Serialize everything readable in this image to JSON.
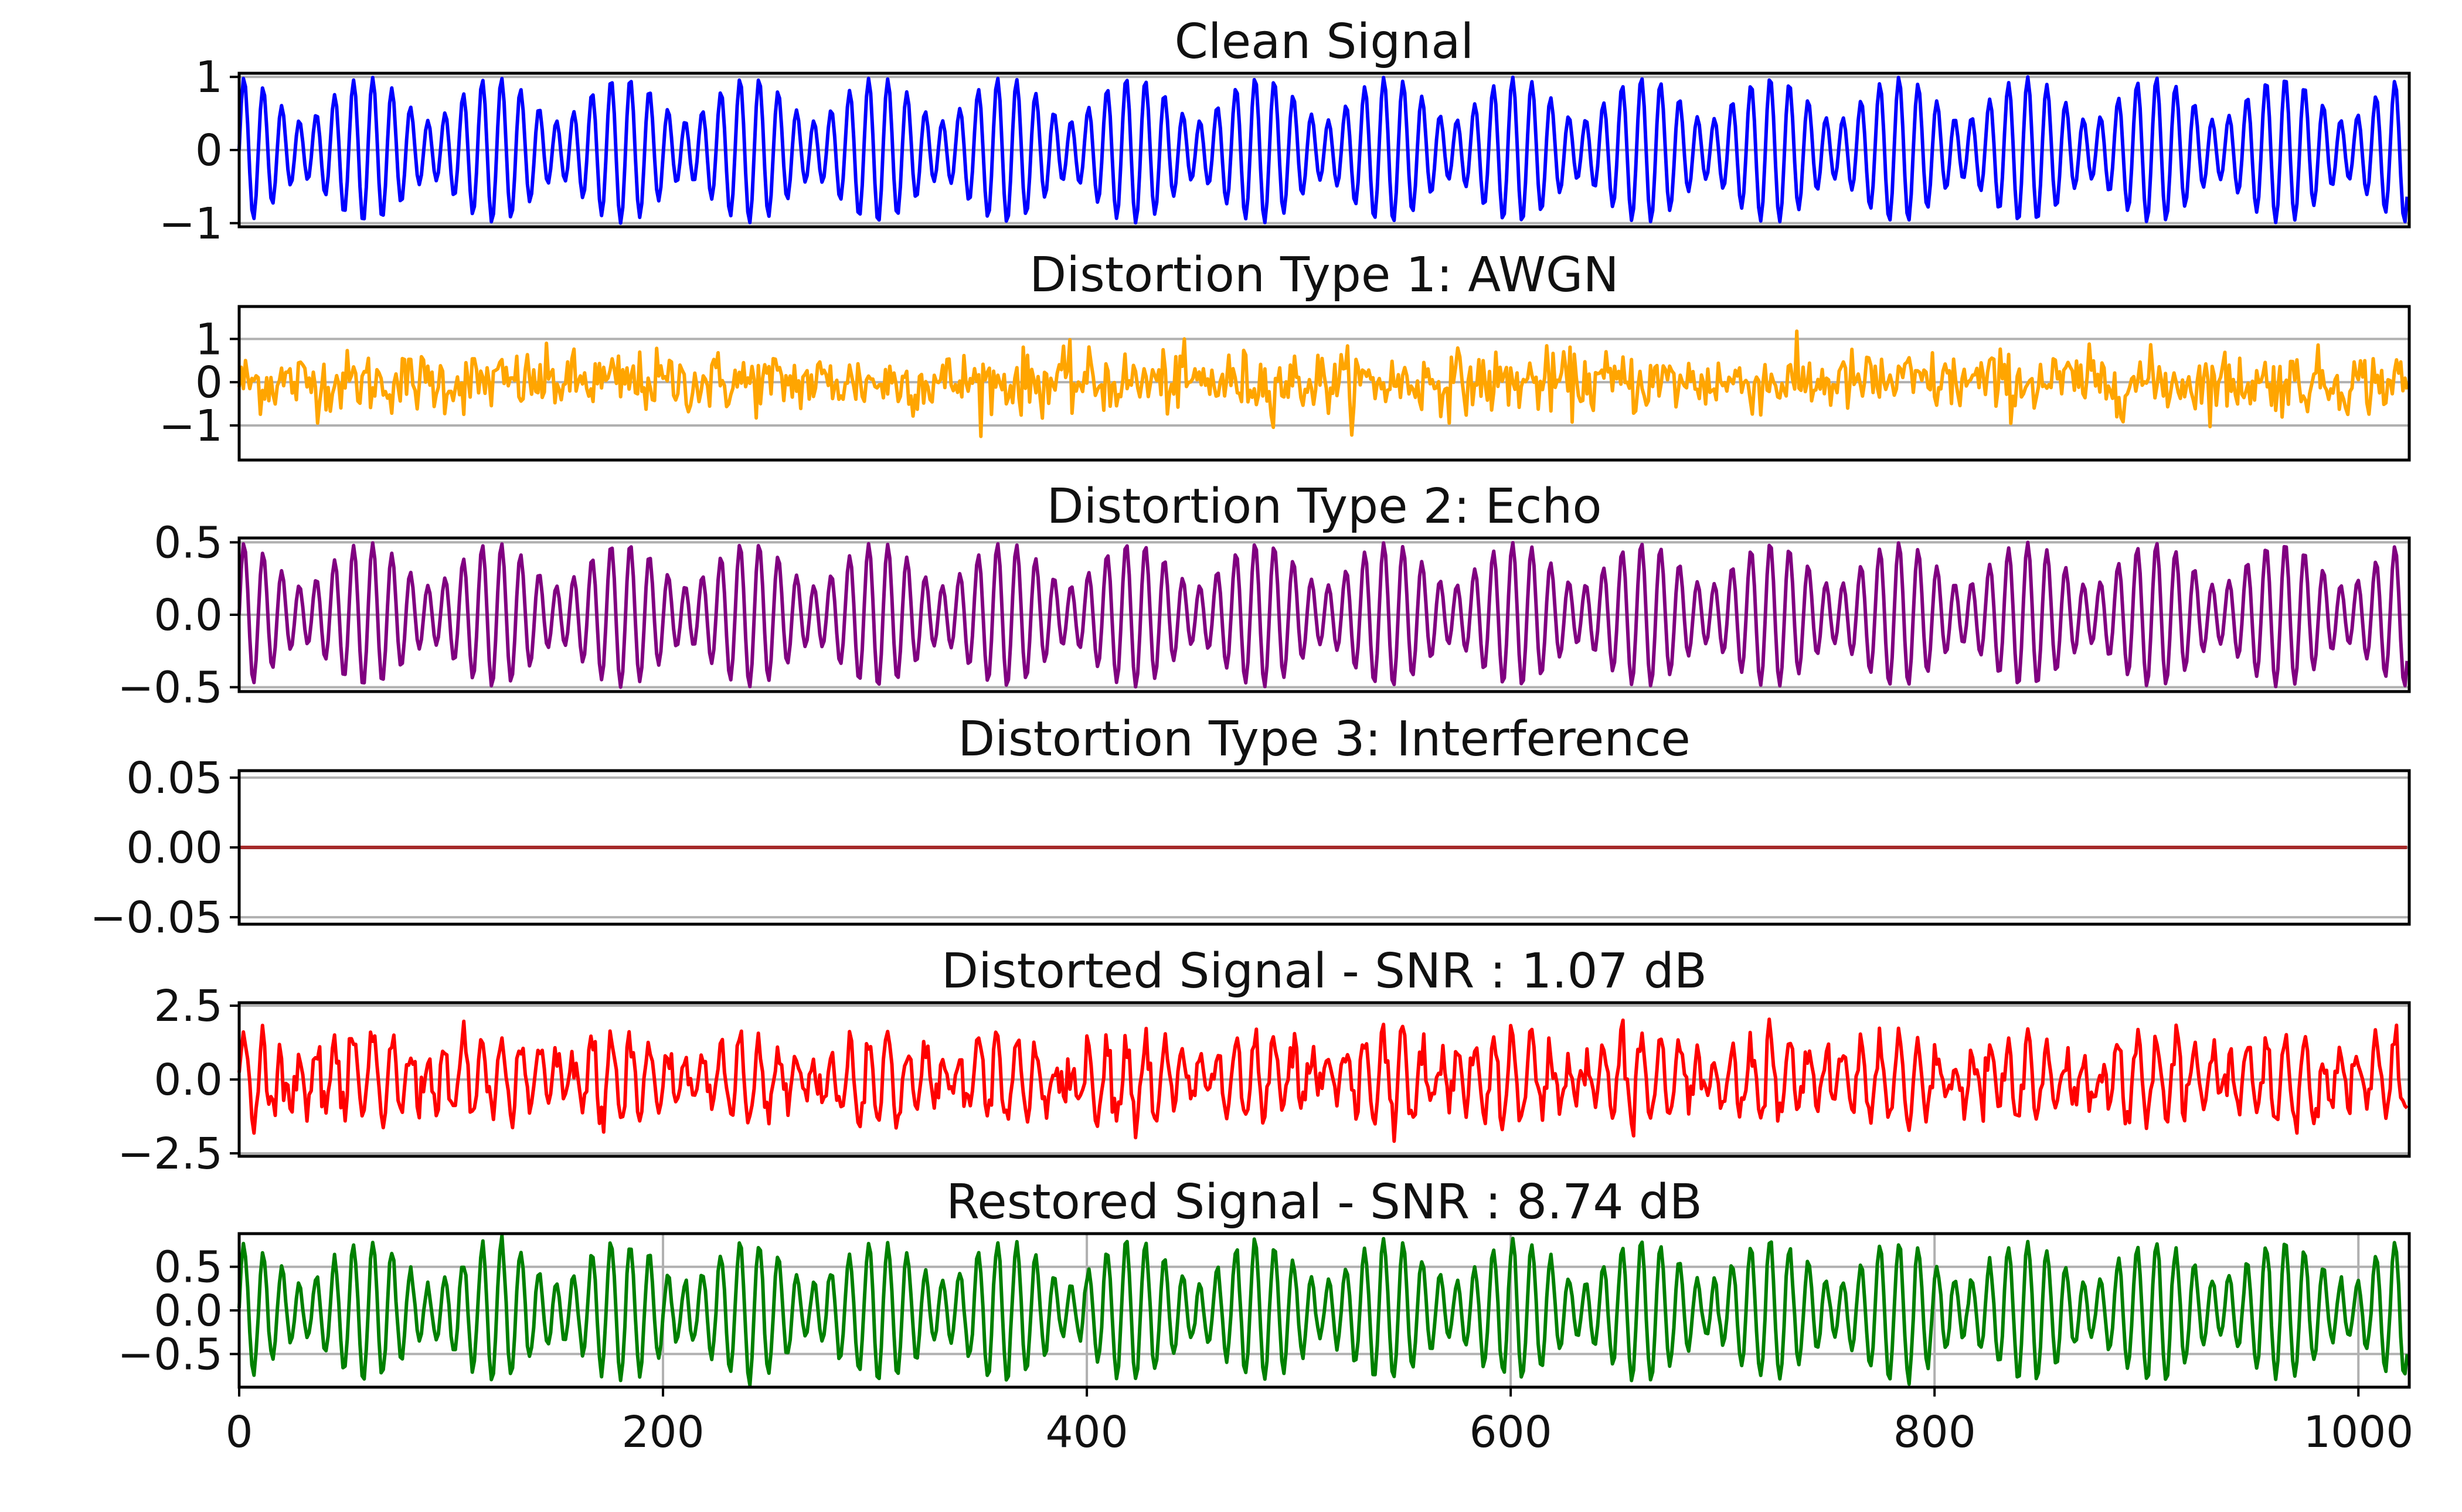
{
  "chart_data": [
    {
      "type": "line",
      "title": "Clean Signal",
      "color": "#0000ff",
      "yticks": [
        {
          "value": 1,
          "label": "1"
        },
        {
          "value": 0,
          "label": "0"
        },
        {
          "value": -1,
          "label": "−1"
        }
      ],
      "ylim": [
        -1.05,
        1.05
      ],
      "xlim": [
        0,
        1024
      ],
      "grid": "horizontal",
      "signal": {
        "components": [
          {
            "amp": 0.7,
            "cycles": 118
          },
          {
            "amp": 0.3,
            "cycles": 101
          }
        ],
        "noise": 0.0,
        "samples": 1024
      }
    },
    {
      "type": "line",
      "title": "Distortion Type 1: AWGN",
      "color": "#ffa500",
      "yticks": [
        {
          "value": 1,
          "label": "1"
        },
        {
          "value": 0,
          "label": "0"
        },
        {
          "value": -1,
          "label": "−1"
        }
      ],
      "ylim": [
        -1.8,
        1.75
      ],
      "xlim": [
        0,
        1024
      ],
      "grid": "horizontal",
      "signal": {
        "components": [],
        "noise": 0.36,
        "samples": 1024
      }
    },
    {
      "type": "line",
      "title": "Distortion Type 2: Echo",
      "color": "#800080",
      "yticks": [
        {
          "value": 0.5,
          "label": "0.5"
        },
        {
          "value": 0,
          "label": "0.0"
        },
        {
          "value": -0.5,
          "label": "−0.5"
        }
      ],
      "ylim": [
        -0.53,
        0.53
      ],
      "xlim": [
        0,
        1024
      ],
      "grid": "horizontal",
      "signal": {
        "components": [
          {
            "amp": 0.35,
            "cycles": 118
          },
          {
            "amp": 0.15,
            "cycles": 101
          }
        ],
        "noise": 0.0,
        "samples": 1024
      }
    },
    {
      "type": "line",
      "title": "Distortion Type 3: Interference",
      "color": "#a52a2a",
      "yticks": [
        {
          "value": 0.05,
          "label": "0.05"
        },
        {
          "value": 0,
          "label": "0.00"
        },
        {
          "value": -0.05,
          "label": "−0.05"
        }
      ],
      "ylim": [
        -0.055,
        0.055
      ],
      "xlim": [
        0,
        1024
      ],
      "grid": "horizontal",
      "signal": {
        "components": [],
        "noise": 0.0,
        "samples": 1024
      }
    },
    {
      "type": "line",
      "title": "Distorted Signal - SNR : 1.07 dB",
      "color": "#ff0000",
      "yticks": [
        {
          "value": 2.5,
          "label": "2.5"
        },
        {
          "value": 0,
          "label": "0.0"
        },
        {
          "value": -2.5,
          "label": "−2.5"
        }
      ],
      "ylim": [
        -2.6,
        2.6
      ],
      "xlim": [
        0,
        1024
      ],
      "grid": "horizontal",
      "signal": {
        "components": [
          {
            "amp": 1.05,
            "cycles": 118
          },
          {
            "amp": 0.45,
            "cycles": 101
          }
        ],
        "noise": 0.35,
        "samples": 1024
      }
    },
    {
      "type": "line",
      "title": "Restored Signal - SNR : 8.74 dB",
      "color": "#008000",
      "yticks": [
        {
          "value": 0.5,
          "label": "0.5"
        },
        {
          "value": 0,
          "label": "0.0"
        },
        {
          "value": -0.5,
          "label": "−0.5"
        }
      ],
      "ylim": [
        -0.88,
        0.88
      ],
      "xlim": [
        0,
        1024
      ],
      "grid": "both",
      "xticks": [
        {
          "value": 0,
          "label": "0"
        },
        {
          "value": 200,
          "label": "200"
        },
        {
          "value": 400,
          "label": "400"
        },
        {
          "value": 600,
          "label": "600"
        },
        {
          "value": 800,
          "label": "800"
        },
        {
          "value": 1000,
          "label": "1000"
        }
      ],
      "signal": {
        "components": [
          {
            "amp": 0.55,
            "cycles": 118
          },
          {
            "amp": 0.25,
            "cycles": 101
          }
        ],
        "noise": 0.03,
        "samples": 1024
      }
    }
  ]
}
